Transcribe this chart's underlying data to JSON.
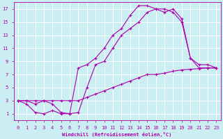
{
  "xlabel": "Windchill (Refroidissement éolien,°C)",
  "bg_color": "#cbeef3",
  "line_color": "#aa00aa",
  "grid_color": "#ffffff",
  "xlim": [
    -0.5,
    23.5
  ],
  "ylim": [
    0,
    18
  ],
  "xticks": [
    0,
    1,
    2,
    3,
    4,
    5,
    6,
    7,
    8,
    9,
    10,
    11,
    12,
    13,
    14,
    15,
    16,
    17,
    18,
    19,
    20,
    21,
    22,
    23
  ],
  "yticks": [
    1,
    3,
    5,
    7,
    9,
    11,
    13,
    15,
    17
  ],
  "line1_x": [
    0,
    1,
    2,
    3,
    4,
    5,
    6,
    7,
    8,
    9,
    10,
    11,
    12,
    13,
    14,
    15,
    16,
    17,
    18,
    19,
    20,
    21,
    22,
    23
  ],
  "line1_y": [
    3.0,
    3.0,
    3.0,
    3.0,
    3.0,
    3.0,
    3.0,
    3.0,
    3.5,
    4.0,
    4.5,
    5.0,
    5.5,
    6.0,
    6.5,
    7.0,
    7.0,
    7.2,
    7.5,
    7.7,
    7.8,
    7.9,
    8.0,
    8.0
  ],
  "line2_x": [
    0,
    1,
    2,
    3,
    4,
    5,
    6,
    7,
    8,
    9,
    10,
    11,
    12,
    13,
    14,
    15,
    16,
    17,
    18,
    19,
    20,
    21,
    22,
    23
  ],
  "line2_y": [
    3.0,
    2.5,
    1.2,
    1.0,
    1.5,
    1.0,
    1.0,
    8.0,
    8.5,
    9.5,
    11.0,
    13.0,
    14.0,
    16.0,
    17.5,
    17.5,
    17.0,
    17.0,
    16.5,
    15.0,
    9.5,
    8.0,
    8.0,
    8.0
  ],
  "line3_x": [
    0,
    1,
    2,
    3,
    4,
    5,
    6,
    7,
    8,
    9,
    10,
    11,
    12,
    13,
    14,
    15,
    16,
    17,
    18,
    19,
    20,
    21,
    22,
    23
  ],
  "line3_y": [
    3.0,
    3.0,
    2.5,
    3.0,
    2.5,
    1.2,
    1.0,
    1.2,
    5.0,
    8.5,
    9.0,
    11.0,
    13.0,
    14.0,
    15.0,
    16.5,
    17.0,
    16.5,
    17.0,
    15.5,
    9.5,
    8.5,
    8.5,
    8.0
  ]
}
